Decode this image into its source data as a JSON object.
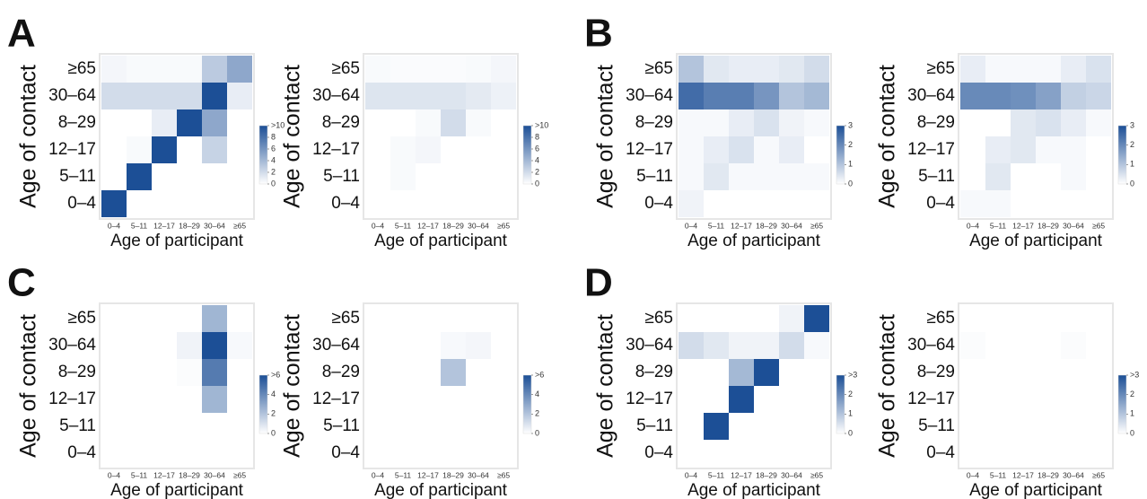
{
  "chart_data": [
    {
      "type": "heatmap",
      "panel": "A",
      "x_label": "Age of participant",
      "y_label": "Age of contact",
      "x_categories": [
        "0–4",
        "5–11",
        "12–17",
        "18–29",
        "30–64",
        "≥65"
      ],
      "y_categories": [
        "≥65",
        "30–64",
        "8–29",
        "12–17",
        "5–11",
        "0–4"
      ],
      "values": [
        [
          0.5,
          0.3,
          0.3,
          0.3,
          3,
          5
        ],
        [
          2,
          2,
          2,
          2,
          10,
          1
        ],
        [
          0,
          0,
          1,
          10,
          5,
          0
        ],
        [
          0,
          0.3,
          10,
          0,
          2.5,
          0
        ],
        [
          0,
          10,
          0,
          0,
          0,
          0
        ],
        [
          10,
          0,
          0,
          0,
          0,
          0
        ]
      ],
      "color": "#1c4f96",
      "clim": [
        0,
        10
      ],
      "colorbar_ticks": [
        {
          "value": 10,
          "label": ">10"
        },
        8,
        6,
        4,
        2,
        0
      ]
    },
    {
      "type": "heatmap",
      "x_label": "Age of participant",
      "y_label": "Age of contact",
      "x_categories": [
        "0–4",
        "5–11",
        "12–17",
        "18–29",
        "30–64",
        "≥65"
      ],
      "y_categories": [
        "≥65",
        "30–64",
        "8–29",
        "12–17",
        "5–11",
        "0–4"
      ],
      "values": [
        [
          0.3,
          0.2,
          0.2,
          0.2,
          0.3,
          0.5
        ],
        [
          1.5,
          1.5,
          1.5,
          1.5,
          1.2,
          0.8
        ],
        [
          0,
          0,
          0.3,
          2,
          0.3,
          0
        ],
        [
          0,
          0.3,
          0.5,
          0,
          0,
          0
        ],
        [
          0,
          0.3,
          0,
          0,
          0,
          0
        ],
        [
          0,
          0,
          0,
          0,
          0,
          0
        ]
      ],
      "color": "#1c4f96",
      "clim": [
        0,
        10
      ],
      "colorbar_ticks": [
        {
          "value": 10,
          "label": ">10"
        },
        8,
        6,
        4,
        2,
        0
      ]
    },
    {
      "type": "heatmap",
      "panel": "B",
      "x_label": "Age of participant",
      "y_label": "Age of contact",
      "x_categories": [
        "0–4",
        "5–11",
        "12–17",
        "18–29",
        "30–64",
        "≥65"
      ],
      "y_categories": [
        "≥65",
        "30–64",
        "8–29",
        "12–17",
        "5–11",
        "0–4"
      ],
      "values": [
        [
          1,
          0.4,
          0.3,
          0.3,
          0.4,
          0.6
        ],
        [
          2.5,
          2.2,
          2.2,
          1.8,
          1,
          1.2
        ],
        [
          0.1,
          0.1,
          0.3,
          0.5,
          0.2,
          0.1
        ],
        [
          0.1,
          0.3,
          0.5,
          0.1,
          0.3,
          0
        ],
        [
          0.1,
          0.4,
          0.1,
          0.1,
          0.1,
          0.1
        ],
        [
          0.2,
          0,
          0,
          0,
          0,
          0
        ]
      ],
      "color": "#1c4f96",
      "clim": [
        0,
        3
      ],
      "colorbar_ticks": [
        3,
        2,
        1,
        0
      ]
    },
    {
      "type": "heatmap",
      "x_label": "Age of participant",
      "y_label": "Age of contact",
      "x_categories": [
        "0–4",
        "5–11",
        "12–17",
        "18–29",
        "30–64",
        "≥65"
      ],
      "y_categories": [
        "≥65",
        "30–64",
        "8–29",
        "12–17",
        "5–11",
        "0–4"
      ],
      "values": [
        [
          0.3,
          0.1,
          0.1,
          0.1,
          0.3,
          0.5
        ],
        [
          2,
          2,
          1.9,
          1.6,
          0.8,
          0.7
        ],
        [
          0,
          0,
          0.4,
          0.5,
          0.3,
          0.1
        ],
        [
          0,
          0.3,
          0.4,
          0.1,
          0.1,
          0
        ],
        [
          0,
          0.4,
          0,
          0,
          0.1,
          0
        ],
        [
          0.1,
          0.1,
          0,
          0,
          0,
          0
        ]
      ],
      "color": "#1c4f96",
      "clim": [
        0,
        3
      ],
      "colorbar_ticks": [
        3,
        2,
        1,
        0
      ]
    },
    {
      "type": "heatmap",
      "panel": "C",
      "x_label": "Age of participant",
      "y_label": "Age of contact",
      "x_categories": [
        "0–4",
        "5–11",
        "12–17",
        "18–29",
        "30–64",
        "≥65"
      ],
      "y_categories": [
        "≥65",
        "30–64",
        "8–29",
        "12–17",
        "5–11",
        "0–4"
      ],
      "values": [
        [
          0,
          0,
          0,
          0,
          2.5,
          0
        ],
        [
          0,
          0,
          0,
          0.4,
          6,
          0.2
        ],
        [
          0,
          0,
          0,
          0.1,
          4.5,
          0
        ],
        [
          0,
          0,
          0,
          0,
          2.5,
          0
        ],
        [
          0,
          0,
          0,
          0,
          0,
          0
        ],
        [
          0,
          0,
          0,
          0,
          0,
          0
        ]
      ],
      "color": "#1c4f96",
      "clim": [
        0,
        6
      ],
      "colorbar_ticks": [
        {
          "value": 6,
          "label": ">6"
        },
        4,
        2,
        0
      ]
    },
    {
      "type": "heatmap",
      "x_label": "Age of participant",
      "y_label": "Age of contact",
      "x_categories": [
        "0–4",
        "5–11",
        "12–17",
        "18–29",
        "30–64",
        "≥65"
      ],
      "y_categories": [
        "≥65",
        "30–64",
        "8–29",
        "12–17",
        "5–11",
        "0–4"
      ],
      "values": [
        [
          0,
          0,
          0,
          0,
          0,
          0
        ],
        [
          0,
          0,
          0,
          0.2,
          0.3,
          0
        ],
        [
          0,
          0,
          0,
          2,
          0,
          0
        ],
        [
          0,
          0,
          0,
          0,
          0,
          0
        ],
        [
          0,
          0,
          0,
          0,
          0,
          0
        ],
        [
          0,
          0,
          0,
          0,
          0,
          0
        ]
      ],
      "color": "#1c4f96",
      "clim": [
        0,
        6
      ],
      "colorbar_ticks": [
        {
          "value": 6,
          "label": ">6"
        },
        4,
        2,
        0
      ]
    },
    {
      "type": "heatmap",
      "panel": "D",
      "x_label": "Age of participant",
      "y_label": "Age of contact",
      "x_categories": [
        "0–4",
        "5–11",
        "12–17",
        "18–29",
        "30–64",
        "≥65"
      ],
      "y_categories": [
        "≥65",
        "30–64",
        "8–29",
        "12–17",
        "5–11",
        "0–4"
      ],
      "values": [
        [
          0,
          0,
          0,
          0,
          0.2,
          3
        ],
        [
          0.6,
          0.4,
          0.2,
          0.2,
          0.6,
          0.1
        ],
        [
          0,
          0,
          1.2,
          3,
          0,
          0
        ],
        [
          0,
          0,
          3,
          0,
          0,
          0
        ],
        [
          0,
          3,
          0,
          0,
          0,
          0
        ],
        [
          0,
          0,
          0,
          0,
          0,
          0
        ]
      ],
      "color": "#1c4f96",
      "clim": [
        0,
        3
      ],
      "colorbar_ticks": [
        {
          "value": 3,
          "label": ">3"
        },
        2,
        1,
        0
      ]
    },
    {
      "type": "heatmap",
      "x_label": "Age of participant",
      "y_label": "Age of contact",
      "x_categories": [
        "0–4",
        "5–11",
        "12–17",
        "18–29",
        "30–64",
        "≥65"
      ],
      "y_categories": [
        "≥65",
        "30–64",
        "8–29",
        "12–17",
        "5–11",
        "0–4"
      ],
      "values": [
        [
          0,
          0,
          0,
          0,
          0,
          0
        ],
        [
          0.05,
          0,
          0,
          0,
          0.05,
          0
        ],
        [
          0,
          0,
          0,
          0,
          0,
          0
        ],
        [
          0,
          0,
          0,
          0,
          0,
          0
        ],
        [
          0,
          0,
          0,
          0,
          0,
          0
        ],
        [
          0,
          0,
          0,
          0,
          0,
          0
        ]
      ],
      "color": "#1c4f96",
      "clim": [
        0,
        3
      ],
      "colorbar_ticks": [
        {
          "value": 3,
          "label": ">3"
        },
        2,
        1,
        0
      ]
    }
  ]
}
